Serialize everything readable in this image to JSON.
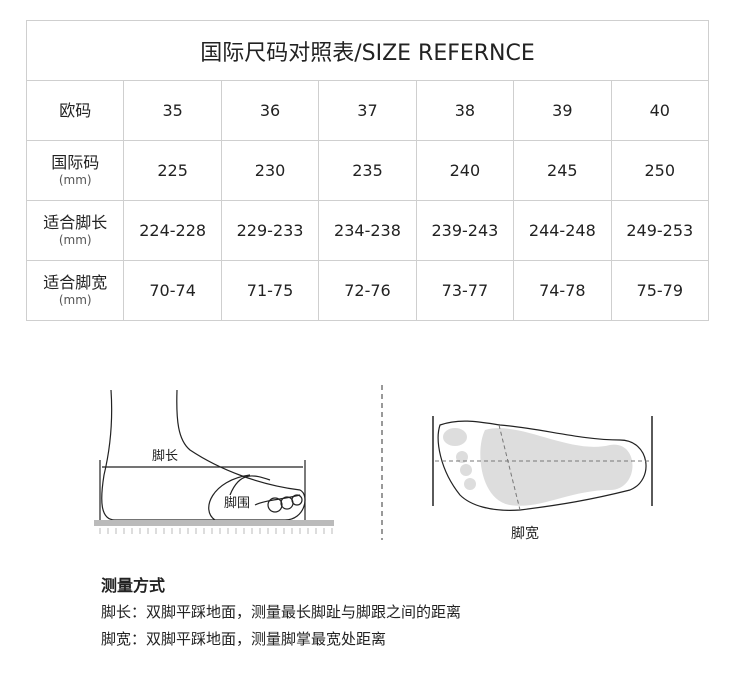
{
  "title": "国际尺码对照表/SIZE REFERNCE",
  "rows": [
    {
      "label": "欧码",
      "unit": "",
      "values": [
        "35",
        "36",
        "37",
        "38",
        "39",
        "40"
      ]
    },
    {
      "label": "国际码",
      "unit": "(mm)",
      "values": [
        "225",
        "230",
        "235",
        "240",
        "245",
        "250"
      ]
    },
    {
      "label": "适合脚长",
      "unit": "(mm)",
      "values": [
        "224-228",
        "229-233",
        "234-238",
        "239-243",
        "244-248",
        "249-253"
      ]
    },
    {
      "label": "适合脚宽",
      "unit": "(mm)",
      "values": [
        "70-74",
        "71-75",
        "72-76",
        "73-77",
        "74-78",
        "75-79"
      ]
    }
  ],
  "illustration": {
    "foot_length_label": "脚长",
    "foot_girth_label": "脚围",
    "foot_width_label": "脚宽"
  },
  "notes": {
    "heading": "测量方式",
    "lines": [
      "脚长：双脚平踩地面，测量最长脚趾与脚跟之间的距离",
      "脚宽：双脚平踩地面，测量脚掌最宽处距离"
    ]
  }
}
